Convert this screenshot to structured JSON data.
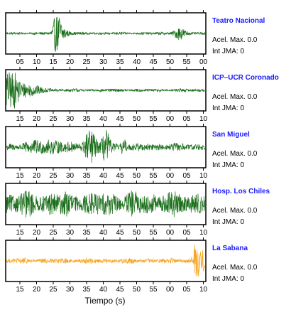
{
  "chart_data": {
    "type": "line",
    "xlabel": "Tiempo (s)",
    "panels": [
      {
        "name": "Teatro Nacional",
        "acel_label": "Acel. Max. 0.0",
        "jma_label": "Int JMA: 0",
        "color": "#1a6e1a",
        "ticks": [
          "05",
          "10",
          "15",
          "20",
          "25",
          "30",
          "35",
          "40",
          "45",
          "50",
          "55",
          "00"
        ],
        "base_noise": 0.06,
        "bursts": [
          {
            "center": 0.255,
            "width": 0.018,
            "amp": 1.0
          },
          {
            "center": 0.27,
            "width": 0.035,
            "amp": 0.45
          },
          {
            "center": 0.87,
            "width": 0.03,
            "amp": 0.3
          }
        ]
      },
      {
        "name": "ICP–UCR Coronado",
        "acel_label": "Acel. Max. 0.0",
        "jma_label": "Int JMA: 0",
        "color": "#1a6e1a",
        "ticks": [
          "15",
          "20",
          "25",
          "30",
          "35",
          "40",
          "45",
          "50",
          "55",
          "00",
          "05",
          "10"
        ],
        "base_noise": 0.07,
        "bursts": [
          {
            "center": 0.015,
            "width": 0.04,
            "amp": 1.0
          },
          {
            "center": 0.08,
            "width": 0.09,
            "amp": 0.35
          }
        ]
      },
      {
        "name": "San Miguel",
        "acel_label": "Acel. Max. 0.0",
        "jma_label": "Int JMA: 0",
        "color": "#1a6e1a",
        "ticks": [
          "15",
          "20",
          "25",
          "30",
          "35",
          "40",
          "45",
          "50",
          "55",
          "00",
          "05",
          "10"
        ],
        "base_noise": 0.18,
        "bursts": [
          {
            "center": 0.42,
            "width": 0.03,
            "amp": 0.85
          },
          {
            "center": 0.5,
            "width": 0.02,
            "amp": 0.8
          },
          {
            "center": 0.59,
            "width": 0.012,
            "amp": 0.45
          },
          {
            "center": 0.2,
            "width": 0.1,
            "amp": 0.25
          }
        ]
      },
      {
        "name": "Hosp. Los Chiles",
        "acel_label": "Acel. Max. 0.0",
        "jma_label": "Int JMA: 0",
        "color": "#1a6e1a",
        "ticks": [
          "15",
          "20",
          "25",
          "30",
          "35",
          "40",
          "45",
          "50",
          "55",
          "00",
          "05",
          "10"
        ],
        "base_noise": 0.55,
        "bursts": []
      },
      {
        "name": "La Sabana",
        "acel_label": "Acel. Max. 0.0",
        "jma_label": "Int JMA: 0",
        "color": "#f5a623",
        "ticks": [
          "15",
          "20",
          "25",
          "30",
          "35",
          "40",
          "45",
          "50",
          "55",
          "00",
          "05",
          "10"
        ],
        "base_noise": 0.12,
        "bursts": [
          {
            "center": 0.955,
            "width": 0.015,
            "amp": 1.0
          },
          {
            "center": 0.985,
            "width": 0.02,
            "amp": 0.5
          }
        ]
      }
    ]
  }
}
